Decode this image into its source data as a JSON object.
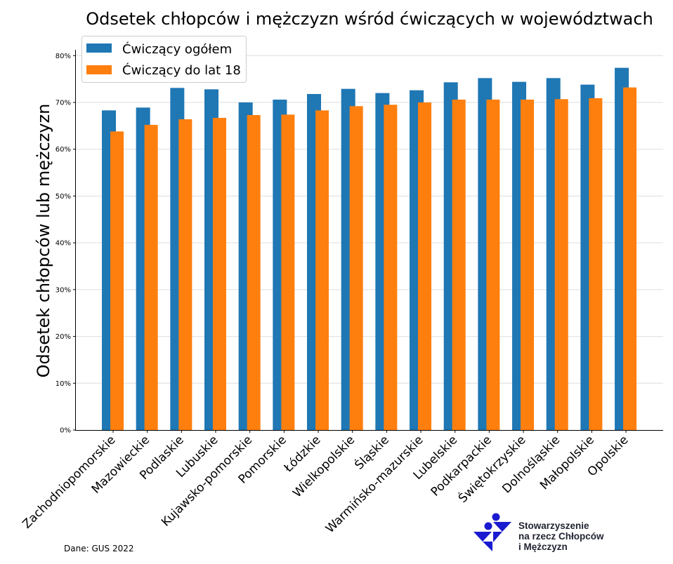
{
  "chart_data": {
    "type": "bar",
    "title": "Odsetek chłopców i mężczyzn wśród ćwiczących w województwach",
    "xlabel": "",
    "ylabel": "Odsetek chłopców lub mężczyzn",
    "ylim": [
      0,
      80
    ],
    "yticks": [
      "0%",
      "10%",
      "20%",
      "30%",
      "40%",
      "50%",
      "60%",
      "70%",
      "80%"
    ],
    "grid": "horizontal",
    "legend_position": "top-left",
    "categories": [
      "Zachodniopomorskie",
      "Mazowieckie",
      "Podlaskie",
      "Lubuskie",
      "Kujawsko-pomorskie",
      "Pomorskie",
      "Łódzkie",
      "Wielkopolskie",
      "Śląskie",
      "Warmińsko-mazurskie",
      "Lubelskie",
      "Podkarpackie",
      "Świętokrzyskie",
      "Dolnośląskie",
      "Małopolskie",
      "Opolskie"
    ],
    "series": [
      {
        "name": "Ćwiczący ogółem",
        "color": "#1f77b4",
        "values": [
          68.3,
          68.9,
          73.1,
          72.8,
          70.0,
          70.6,
          71.8,
          72.9,
          72.0,
          72.6,
          74.3,
          75.2,
          74.4,
          75.2,
          73.8,
          77.4
        ]
      },
      {
        "name": "Ćwiczący do lat 18",
        "color": "#ff7f0e",
        "values": [
          63.8,
          65.2,
          66.4,
          66.7,
          67.3,
          67.4,
          68.3,
          69.2,
          69.5,
          70.0,
          70.6,
          70.6,
          70.6,
          70.7,
          70.9,
          73.2
        ]
      }
    ]
  },
  "source": "Dane: GUS 2022",
  "logo": {
    "text_lines": [
      "Stowarzyszenie",
      "na rzecz Chłopców",
      "i Mężczyzn"
    ],
    "color": "#1a1ad0"
  }
}
